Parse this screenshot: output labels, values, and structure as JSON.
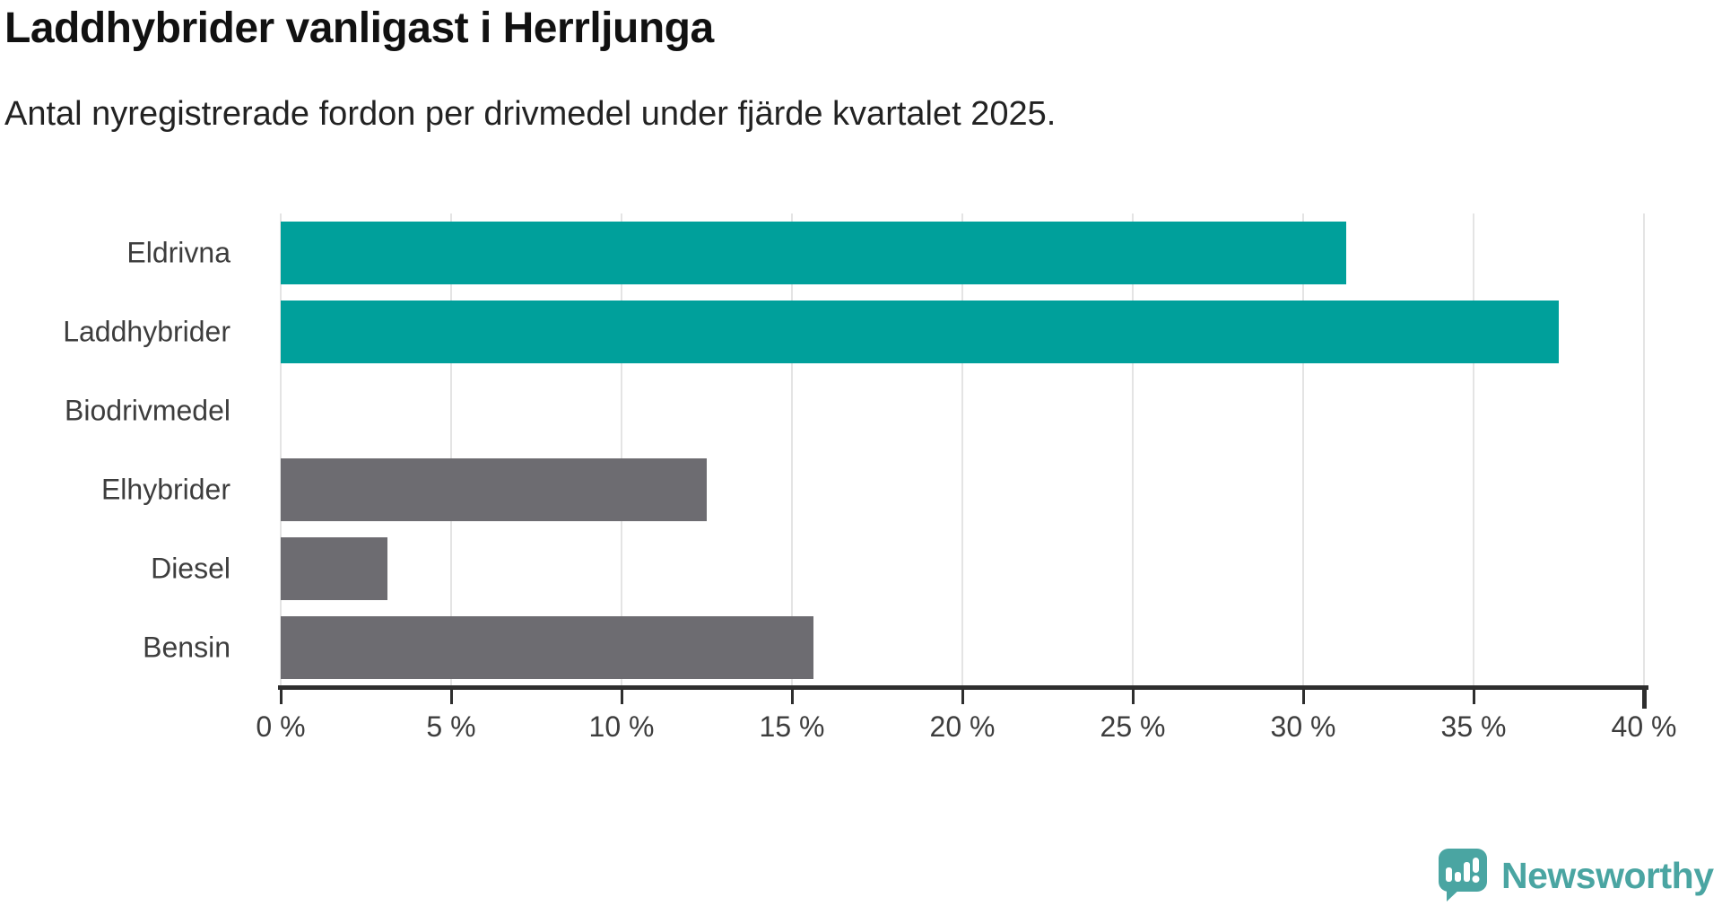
{
  "header": {
    "title": "Laddhybrider vanligast i Herrljunga",
    "subtitle": "Antal nyregistrerade fordon per drivmedel under fjärde kvartalet 2025."
  },
  "chart_data": {
    "type": "bar",
    "orientation": "horizontal",
    "title": "Laddhybrider vanligast i Herrljunga",
    "subtitle": "Antal nyregistrerade fordon per drivmedel under fjärde kvartalet 2025.",
    "categories": [
      "Eldrivna",
      "Laddhybrider",
      "Biodrivmedel",
      "Elhybrider",
      "Diesel",
      "Bensin"
    ],
    "values": [
      31.25,
      37.5,
      0,
      12.5,
      3.125,
      15.625
    ],
    "unit": "%",
    "xlabel": "",
    "ylabel": "",
    "xlim": [
      0,
      40
    ],
    "xticks": [
      0,
      5,
      10,
      15,
      20,
      25,
      30,
      35,
      40
    ],
    "xtick_labels": [
      "0 %",
      "5 %",
      "10 %",
      "15 %",
      "20 %",
      "25 %",
      "30 %",
      "35 %",
      "40 %"
    ],
    "bar_colors": [
      "#00a09b",
      "#00a09b",
      "#6d6c71",
      "#6d6c71",
      "#6d6c71",
      "#6d6c71"
    ],
    "highlight_color": "#00a09b",
    "default_color": "#6d6c71",
    "gridline_color": "#e4e4e4",
    "axis_color": "#2e2e2e",
    "grid": true,
    "legend": "none"
  },
  "branding": {
    "logo_text": "Newsworthy",
    "logo_color": "#4aa5a2"
  }
}
